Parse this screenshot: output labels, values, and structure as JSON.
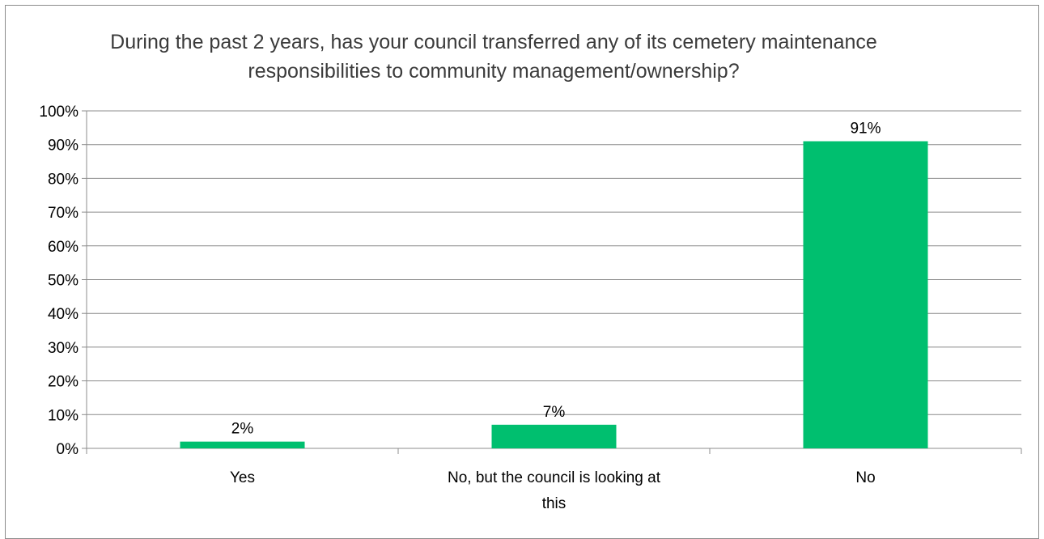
{
  "chart_data": {
    "type": "bar",
    "title": "During the past 2 years, has your council transferred any of its cemetery maintenance responsibilities to community management/ownership?",
    "categories": [
      "Yes",
      "No, but the council is looking at this",
      "No"
    ],
    "category_lines": [
      [
        "Yes"
      ],
      [
        "No, but the council is looking at",
        "this"
      ],
      [
        "No"
      ]
    ],
    "values": [
      2,
      7,
      91
    ],
    "data_labels": [
      "2%",
      "7%",
      "91%"
    ],
    "ylim": [
      0,
      100
    ],
    "y_ticks": [
      "0%",
      "10%",
      "20%",
      "30%",
      "40%",
      "50%",
      "60%",
      "70%",
      "80%",
      "90%",
      "100%"
    ],
    "grid": true,
    "legend": "none",
    "bar_color": "#00bf6f",
    "grid_color": "#8c8c8c"
  }
}
